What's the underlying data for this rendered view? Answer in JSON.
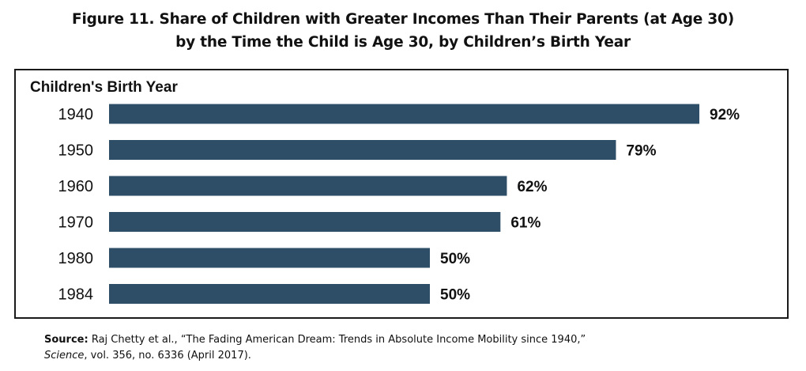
{
  "title": {
    "line1": "Figure 11. Share of Children with Greater Incomes Than Their Parents (at Age 30)",
    "line2": "by the Time the Child is Age 30, by Children’s Birth Year"
  },
  "source": {
    "label": "Source:",
    "text1": "Raj Chetty et al., “The Fading American Dream: Trends in Absolute Income Mobility since 1940,”",
    "journal": "Science",
    "text2": ", vol. 356, no. 6336 (April 2017)."
  },
  "chart_data": {
    "type": "bar",
    "orientation": "horizontal",
    "ylabel": "Children's Birth Year",
    "categories": [
      "1940",
      "1950",
      "1960",
      "1970",
      "1980",
      "1984"
    ],
    "values": [
      92,
      79,
      62,
      61,
      50,
      50
    ],
    "value_labels": [
      "92%",
      "79%",
      "62%",
      "61%",
      "50%",
      "50%"
    ],
    "unit": "%",
    "xlim": [
      0,
      100
    ],
    "grid": false,
    "legend": "none",
    "bar_color": "#2e4d66"
  }
}
